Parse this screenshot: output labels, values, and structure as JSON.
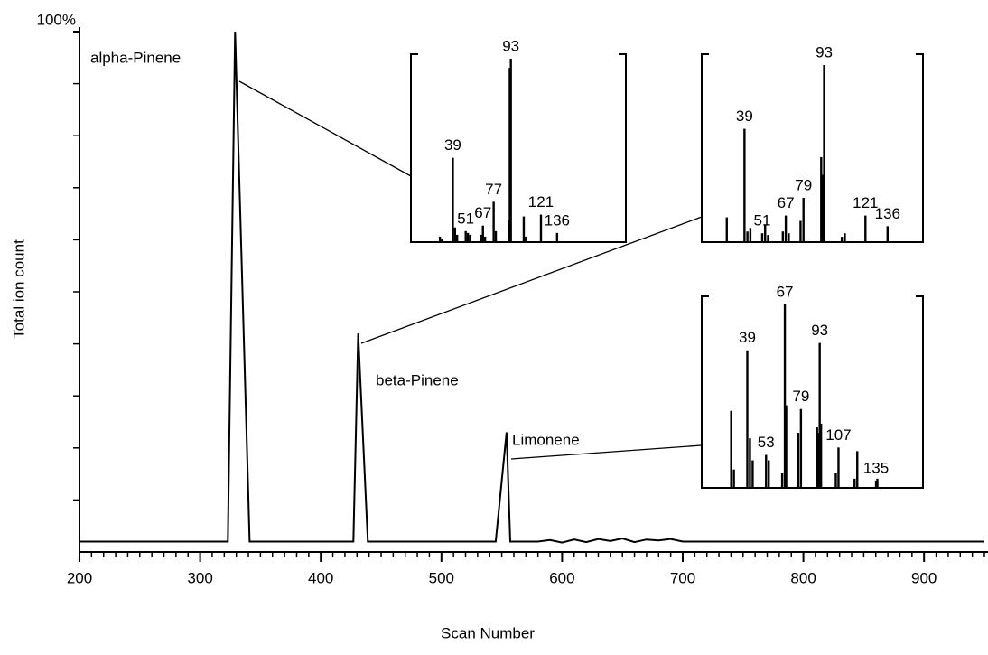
{
  "chart_data": [
    {
      "type": "line",
      "xlabel": "Scan Number",
      "ylabel": "Total ion count",
      "x": [
        200,
        323,
        329,
        341,
        427,
        431,
        439,
        545,
        554,
        557,
        580,
        590,
        600,
        610,
        620,
        630,
        640,
        650,
        660,
        670,
        680,
        690,
        700,
        950
      ],
      "values": [
        2,
        2,
        100,
        2,
        2,
        42,
        2,
        2,
        23,
        2,
        2,
        2.3,
        1.8,
        2.4,
        1.9,
        2.5,
        2.1,
        2.6,
        1.9,
        2.4,
        2.2,
        2.5,
        2,
        2
      ],
      "color": "#000000",
      "xlim": [
        200,
        950
      ],
      "ylim": [
        0,
        100
      ],
      "xticks": [
        200,
        300,
        400,
        500,
        600,
        700,
        800,
        900
      ],
      "xminor_step": 10,
      "yticks": [
        {
          "value": 100,
          "label": "100%"
        }
      ],
      "yminor_step": 10,
      "annotations": [
        "alpha-Pinene",
        "beta-Pinene",
        "Limonene"
      ]
    },
    {
      "type": "bar",
      "x": [
        27,
        29,
        39,
        41,
        43,
        51,
        53,
        55,
        65,
        67,
        69,
        77,
        79,
        91,
        92,
        93,
        105,
        107,
        121,
        136
      ],
      "values": [
        3,
        2,
        46,
        8,
        4,
        6,
        5,
        4,
        4,
        9,
        3,
        22,
        6,
        12,
        95,
        100,
        14,
        3,
        15,
        5
      ],
      "labeled": [
        false,
        false,
        true,
        false,
        false,
        true,
        false,
        false,
        false,
        true,
        false,
        true,
        false,
        false,
        false,
        true,
        false,
        false,
        true,
        true
      ],
      "color": "#000000",
      "xlim": [
        0,
        200
      ],
      "ylim": [
        0,
        100
      ]
    },
    {
      "type": "bar",
      "x": [
        27,
        39,
        41,
        43,
        51,
        53,
        55,
        65,
        67,
        69,
        77,
        79,
        91,
        92,
        93,
        105,
        107,
        121,
        136
      ],
      "values": [
        14,
        64,
        6,
        8,
        5,
        10,
        4,
        6,
        15,
        5,
        12,
        25,
        48,
        38,
        100,
        3,
        5,
        15,
        9
      ],
      "labeled": [
        false,
        true,
        false,
        false,
        true,
        false,
        false,
        false,
        true,
        false,
        false,
        true,
        false,
        false,
        true,
        false,
        false,
        true,
        true
      ],
      "color": "#000000",
      "xlim": [
        10,
        160
      ],
      "ylim": [
        0,
        100
      ]
    },
    {
      "type": "bar",
      "x": [
        27,
        29,
        39,
        41,
        43,
        53,
        55,
        65,
        67,
        68,
        77,
        79,
        91,
        92,
        93,
        94,
        105,
        107,
        119,
        121,
        135,
        136
      ],
      "values": [
        42,
        10,
        75,
        27,
        15,
        18,
        15,
        8,
        100,
        45,
        30,
        43,
        33,
        30,
        79,
        35,
        8,
        22,
        5,
        20,
        4,
        5
      ],
      "labeled": [
        false,
        false,
        true,
        false,
        false,
        true,
        false,
        false,
        true,
        false,
        false,
        true,
        false,
        false,
        true,
        false,
        false,
        true,
        false,
        false,
        true,
        false
      ],
      "color": "#000000",
      "xlim": [
        5,
        170
      ],
      "ylim": [
        0,
        100
      ]
    }
  ]
}
